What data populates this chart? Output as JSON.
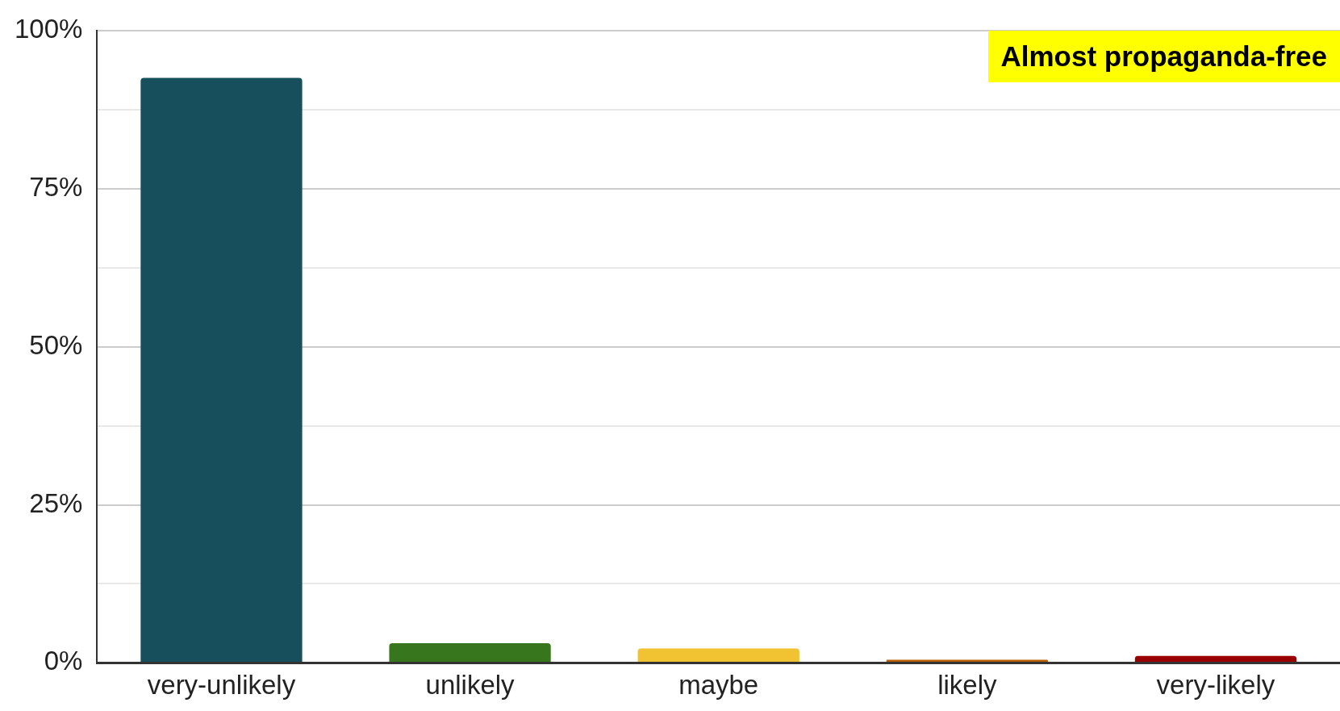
{
  "chart_data": {
    "type": "bar",
    "categories": [
      "very-unlikely",
      "unlikely",
      "maybe",
      "likely",
      "very-likely"
    ],
    "values": [
      92.5,
      3.1,
      2.3,
      0.5,
      1.1
    ],
    "colors": [
      "#174f5c",
      "#38761d",
      "#f1c232",
      "#b45f06",
      "#990000"
    ],
    "ylim": [
      0,
      100
    ],
    "yticks": [
      {
        "value": 0,
        "label": "0%"
      },
      {
        "value": 12.5,
        "label": null
      },
      {
        "value": 25,
        "label": "25%"
      },
      {
        "value": 37.5,
        "label": null
      },
      {
        "value": 50,
        "label": "50%"
      },
      {
        "value": 62.5,
        "label": null
      },
      {
        "value": 75,
        "label": "75%"
      },
      {
        "value": 87.5,
        "label": null
      },
      {
        "value": 100,
        "label": "100%"
      }
    ],
    "grid": "y",
    "legend": false,
    "annotations": [
      "Almost propaganda-free"
    ]
  }
}
